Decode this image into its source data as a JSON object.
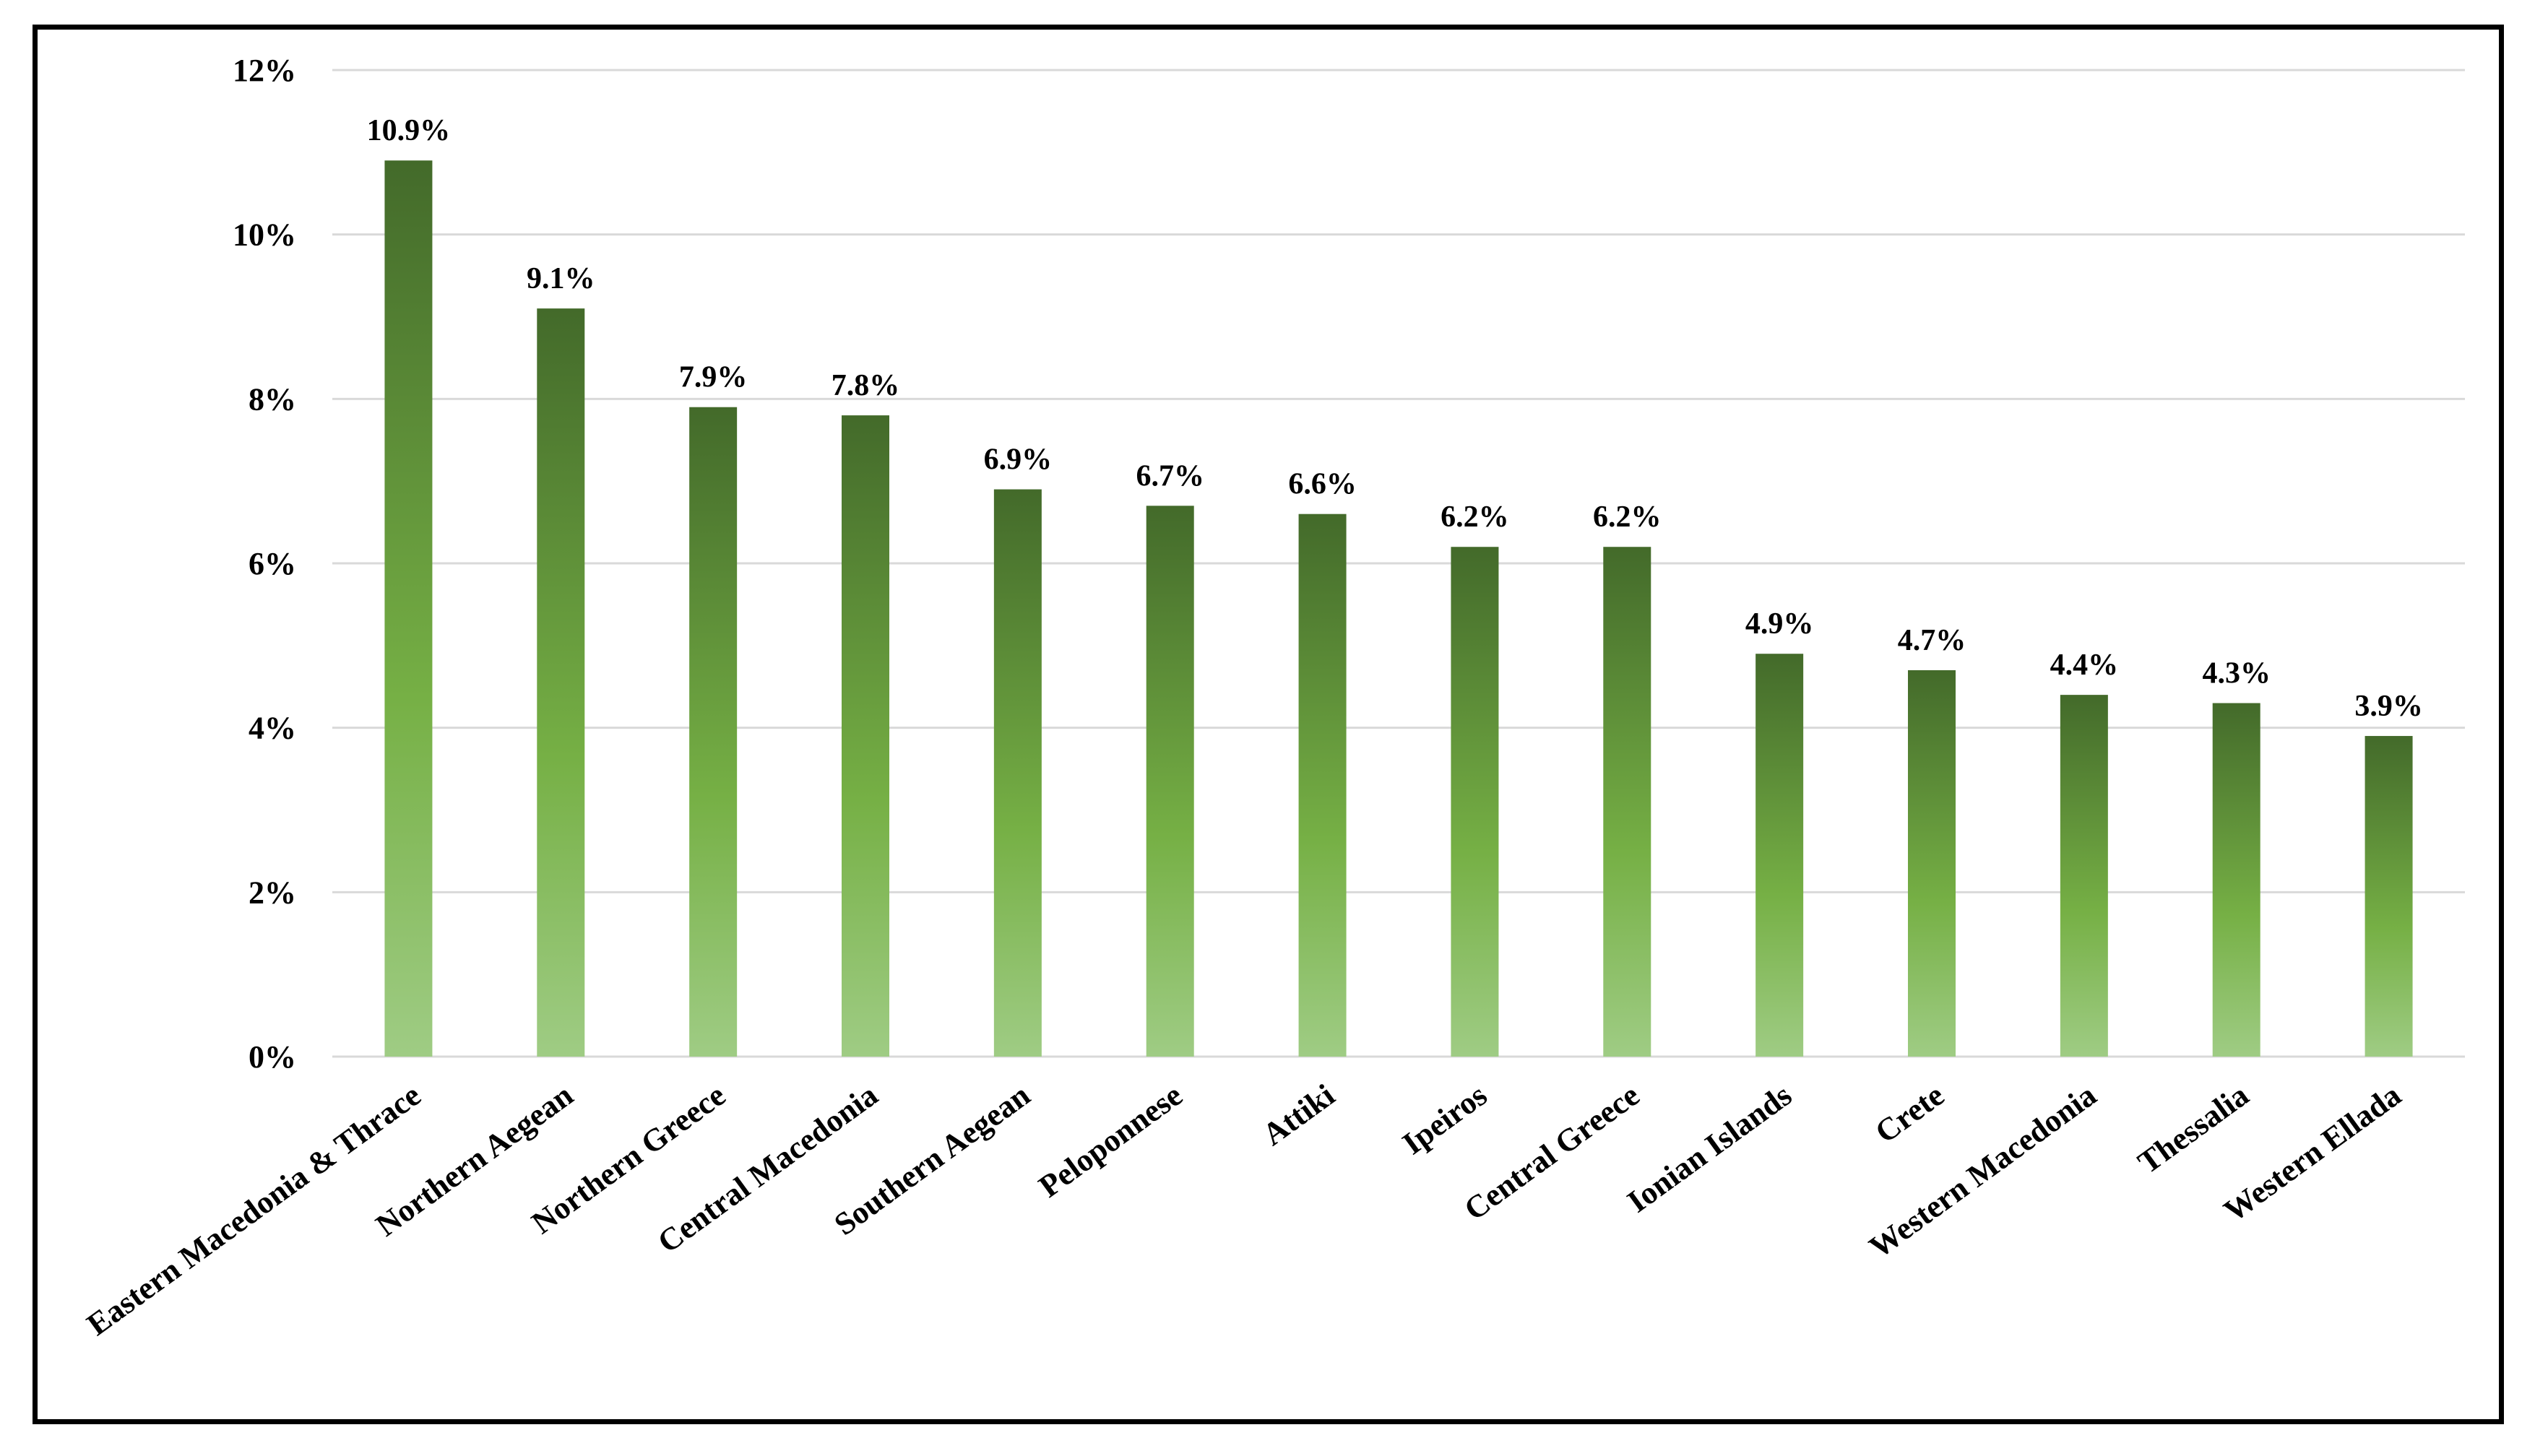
{
  "chart_data": {
    "type": "bar",
    "title": "",
    "xlabel": "",
    "ylabel": "",
    "categories": [
      "Eastern Macedonia & Thrace",
      "Northern Aegean",
      "Northern Greece",
      "Central Macedonia",
      "Southern Aegean",
      "Peloponnese",
      "Attiki",
      "Ipeiros",
      "Central Greece",
      "Ionian Islands",
      "Crete",
      "Western Macedonia",
      "Thessalia",
      "Western Ellada"
    ],
    "values": [
      10.9,
      9.1,
      7.9,
      7.8,
      6.9,
      6.7,
      6.6,
      6.2,
      6.2,
      4.9,
      4.7,
      4.4,
      4.3,
      3.9
    ],
    "value_labels": [
      "10.9%",
      "9.1%",
      "7.9%",
      "7.8%",
      "6.9%",
      "6.7%",
      "6.6%",
      "6.2%",
      "6.2%",
      "4.9%",
      "4.7%",
      "4.4%",
      "4.3%",
      "3.9%"
    ],
    "ylim": [
      0,
      12
    ],
    "y_ticks": [
      0,
      2,
      4,
      6,
      8,
      10,
      12
    ],
    "y_tick_labels": [
      "0%",
      "2%",
      "4%",
      "6%",
      "8%",
      "10%",
      "12%"
    ],
    "grid": true,
    "legend": "none",
    "colors": {
      "bar_top": "#436A2A",
      "bar_middle": "#76B045",
      "bar_bottom": "#9FCC84",
      "gridline": "#D9D9D9",
      "border": "#000000"
    }
  }
}
